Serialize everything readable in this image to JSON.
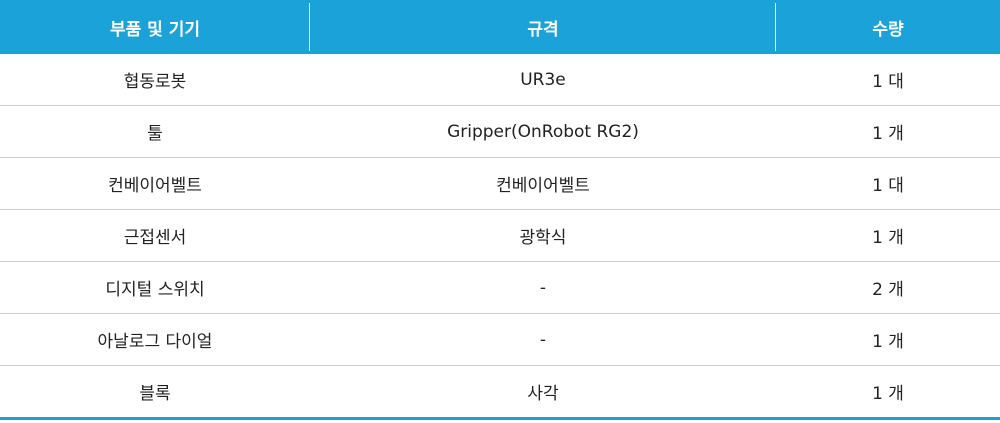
{
  "table": {
    "headers": [
      "부품 및 기기",
      "규격",
      "수량"
    ],
    "rows": [
      [
        "협동로봇",
        "UR3e",
        "1 대"
      ],
      [
        "툴",
        "Gripper(OnRobot RG2)",
        "1 개"
      ],
      [
        "컨베이어벨트",
        "컨베이어벨트",
        "1 대"
      ],
      [
        "근접센서",
        "광학식",
        "1 개"
      ],
      [
        "디지털 스위치",
        "-",
        "2 개"
      ],
      [
        "아날로그 다이얼",
        "-",
        "1 개"
      ],
      [
        "블록",
        "사각",
        "1 개"
      ]
    ]
  },
  "colors": {
    "header_bg": "#1ba2d9",
    "header_text": "#ffffff",
    "row_divider": "#a9d8ec"
  }
}
